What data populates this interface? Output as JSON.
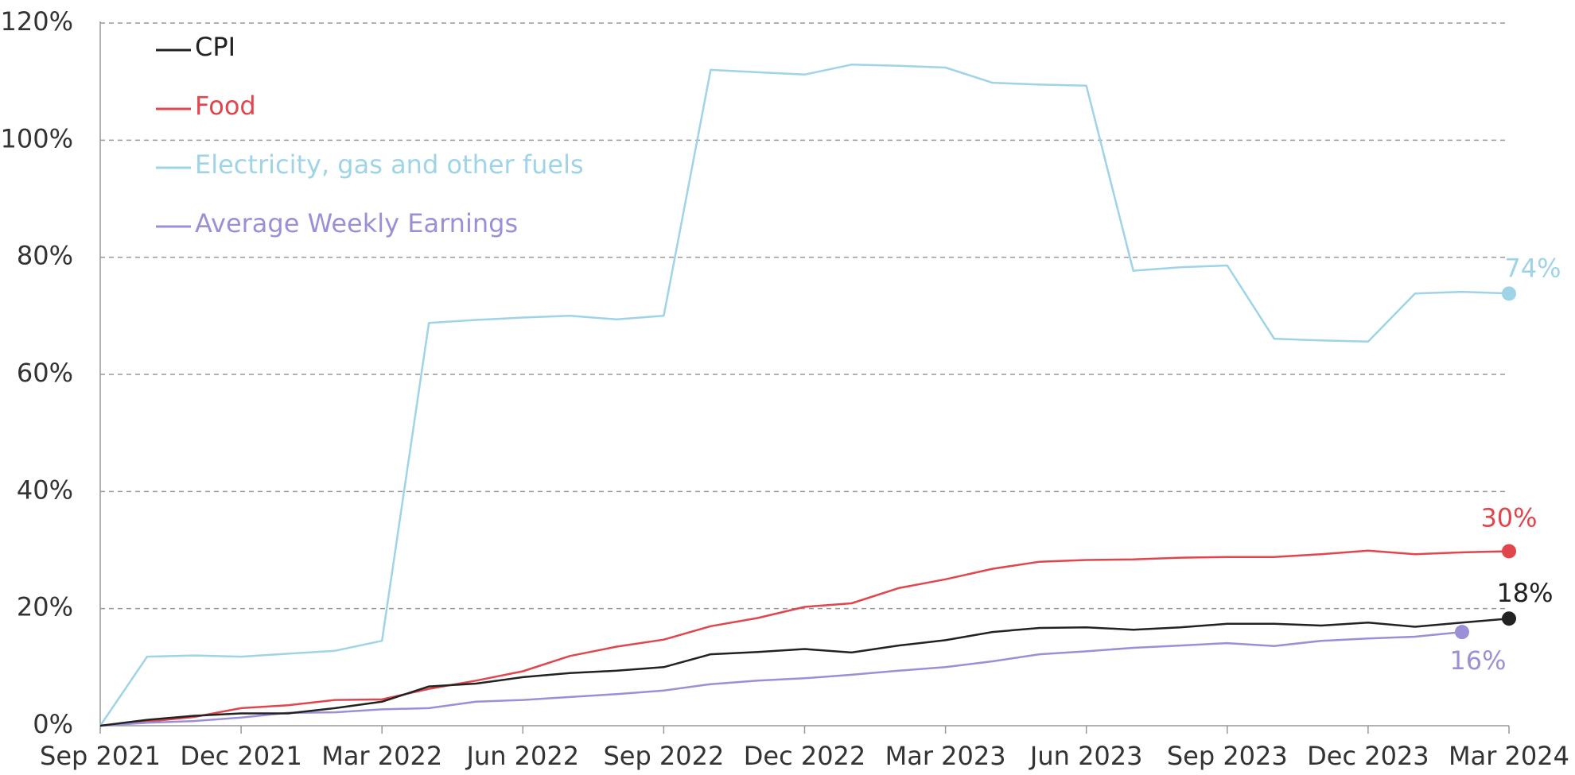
{
  "chart_data": {
    "type": "line",
    "categories": [
      "Sep 2021",
      null,
      null,
      "Dec 2021",
      null,
      null,
      "Mar 2022",
      null,
      null,
      "Jun 2022",
      null,
      null,
      "Sep 2022",
      null,
      null,
      "Dec 2022",
      null,
      null,
      "Mar 2023",
      null,
      null,
      "Jun 2023",
      null,
      null,
      "Sep 2023",
      null,
      null,
      "Dec 2023",
      null,
      null,
      "Mar 2024"
    ],
    "series": [
      {
        "name": "CPI",
        "color": "#222222",
        "end_label": "18%",
        "values": [
          0,
          1,
          1.7,
          2.1,
          2.1,
          3,
          4.1,
          6.7,
          7.2,
          8.3,
          9,
          9.4,
          10,
          12.2,
          12.6,
          13.1,
          12.5,
          13.7,
          14.6,
          16,
          16.7,
          16.8,
          16.4,
          16.8,
          17.4,
          17.4,
          17.1,
          17.6,
          16.9,
          17.6,
          18.3
        ]
      },
      {
        "name": "Food",
        "color": "#e0464b",
        "end_label": "30%",
        "values": [
          0,
          0.7,
          1.5,
          3,
          3.5,
          4.4,
          4.5,
          6.3,
          7.7,
          9.3,
          11.9,
          13.5,
          14.7,
          17,
          18.4,
          20.3,
          20.9,
          23.5,
          25,
          26.8,
          28,
          28.3,
          28.4,
          28.7,
          28.8,
          28.8,
          29.3,
          29.9,
          29.3,
          29.6,
          29.8
        ]
      },
      {
        "name": "Electricity, gas and other fuels",
        "color": "#9fd3e6",
        "end_label": "74%",
        "values": [
          0,
          11.8,
          12,
          11.8,
          12.3,
          12.8,
          14.5,
          68.8,
          69.3,
          69.7,
          70,
          69.4,
          70,
          112,
          111.6,
          111.2,
          112.9,
          112.7,
          112.4,
          109.8,
          109.5,
          109.3,
          77.7,
          78.3,
          78.6,
          66.1,
          65.8,
          65.6,
          73.8,
          74.1,
          73.8
        ]
      },
      {
        "name": "Average Weekly Earnings",
        "color": "#9b8fd8",
        "end_label": "16%",
        "values": [
          0,
          0.5,
          0.8,
          1.4,
          2.2,
          2.3,
          2.8,
          3,
          4.1,
          4.4,
          4.9,
          5.4,
          6,
          7.1,
          7.7,
          8.1,
          8.7,
          9.4,
          10,
          11,
          12.2,
          12.7,
          13.3,
          13.7,
          14.1,
          13.6,
          14.5,
          14.9,
          15.2,
          16,
          null
        ]
      }
    ],
    "ylim": [
      0,
      120
    ],
    "yticks": [
      {
        "value": 0,
        "label": "0%"
      },
      {
        "value": 20,
        "label": "20%"
      },
      {
        "value": 40,
        "label": "40%"
      },
      {
        "value": 60,
        "label": "60%"
      },
      {
        "value": 80,
        "label": "80%"
      },
      {
        "value": 100,
        "label": "100%"
      },
      {
        "value": 120,
        "label": "120%"
      }
    ],
    "grid": true,
    "legend": "upper left"
  }
}
